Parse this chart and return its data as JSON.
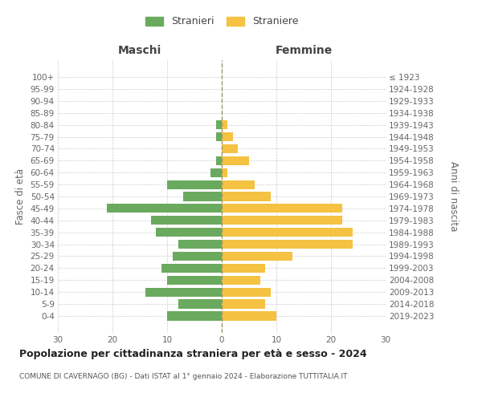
{
  "age_groups": [
    "100+",
    "95-99",
    "90-94",
    "85-89",
    "80-84",
    "75-79",
    "70-74",
    "65-69",
    "60-64",
    "55-59",
    "50-54",
    "45-49",
    "40-44",
    "35-39",
    "30-34",
    "25-29",
    "20-24",
    "15-19",
    "10-14",
    "5-9",
    "0-4"
  ],
  "birth_years": [
    "≤ 1923",
    "1924-1928",
    "1929-1933",
    "1934-1938",
    "1939-1943",
    "1944-1948",
    "1949-1953",
    "1954-1958",
    "1959-1963",
    "1964-1968",
    "1969-1973",
    "1974-1978",
    "1979-1983",
    "1984-1988",
    "1989-1993",
    "1994-1998",
    "1999-2003",
    "2004-2008",
    "2009-2013",
    "2014-2018",
    "2019-2023"
  ],
  "males": [
    0,
    0,
    0,
    0,
    1,
    1,
    0,
    1,
    2,
    10,
    7,
    21,
    13,
    12,
    8,
    9,
    11,
    10,
    14,
    8,
    10
  ],
  "females": [
    0,
    0,
    0,
    0,
    1,
    2,
    3,
    5,
    1,
    6,
    9,
    22,
    22,
    24,
    24,
    13,
    8,
    7,
    9,
    8,
    10
  ],
  "male_color": "#6aaa5e",
  "female_color": "#f5c242",
  "background_color": "#ffffff",
  "grid_color": "#cccccc",
  "title": "Popolazione per cittadinanza straniera per età e sesso - 2024",
  "subtitle": "COMUNE DI CAVERNAGO (BG) - Dati ISTAT al 1° gennaio 2024 - Elaborazione TUTTITALIA.IT",
  "xlabel_left": "Maschi",
  "xlabel_right": "Femmine",
  "ylabel_left": "Fasce di età",
  "ylabel_right": "Anni di nascita",
  "legend_male": "Stranieri",
  "legend_female": "Straniere",
  "xlim": 30,
  "bar_height": 0.75
}
